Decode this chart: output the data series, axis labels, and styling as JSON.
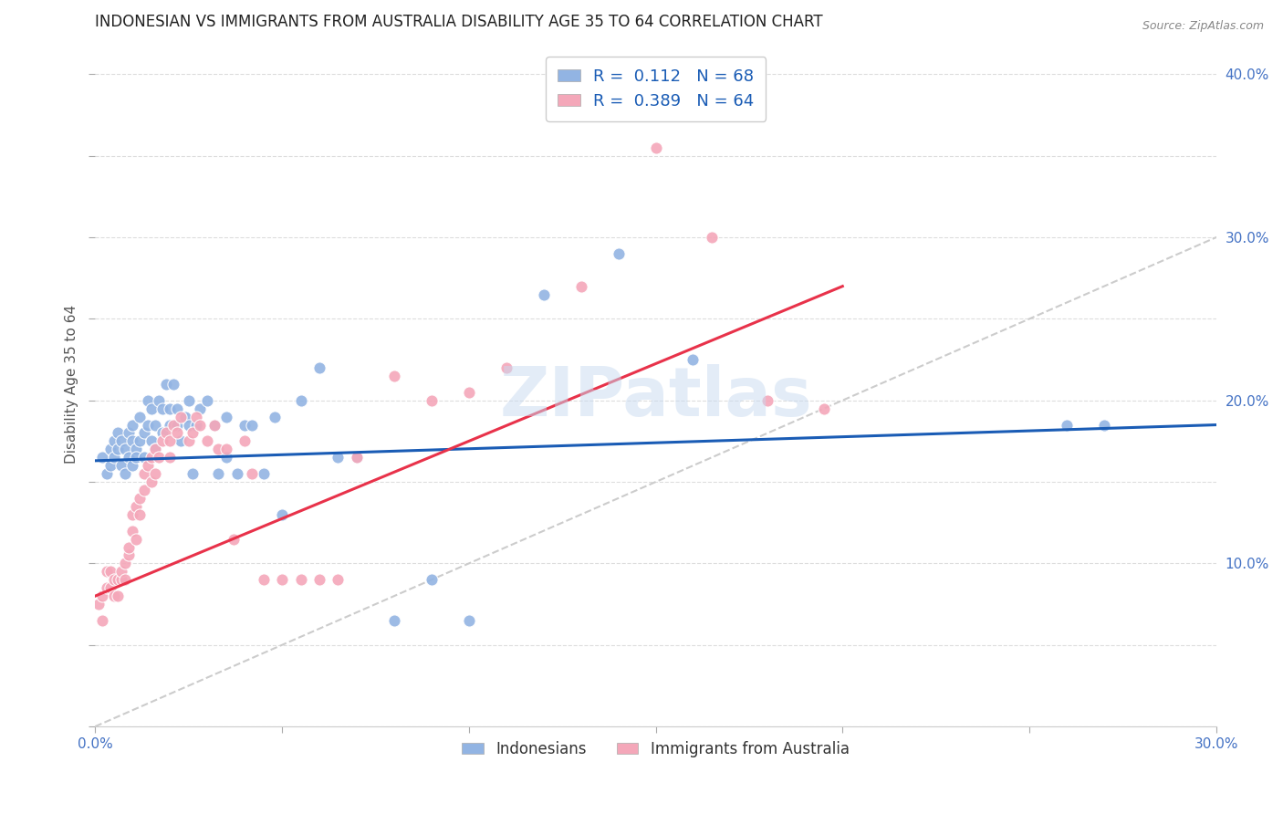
{
  "title": "INDONESIAN VS IMMIGRANTS FROM AUSTRALIA DISABILITY AGE 35 TO 64 CORRELATION CHART",
  "source": "Source: ZipAtlas.com",
  "ylabel": "Disability Age 35 to 64",
  "xlim": [
    0.0,
    0.3
  ],
  "ylim": [
    0.0,
    0.42
  ],
  "x_tick_positions": [
    0.0,
    0.05,
    0.1,
    0.15,
    0.2,
    0.25,
    0.3
  ],
  "x_tick_labels": [
    "0.0%",
    "",
    "",
    "",
    "",
    "",
    "30.0%"
  ],
  "y_ticks_right": [
    0.1,
    0.2,
    0.3,
    0.4
  ],
  "y_tick_labels_right": [
    "10.0%",
    "20.0%",
    "30.0%",
    "40.0%"
  ],
  "legend_R1": "0.112",
  "legend_N1": "68",
  "legend_R2": "0.389",
  "legend_N2": "64",
  "indonesian_color": "#92b4e3",
  "australia_color": "#f4a7b9",
  "trendline1_color": "#1a5cb5",
  "trendline2_color": "#e8324a",
  "diagonal_color": "#cccccc",
  "watermark": "ZIPatlas",
  "indonesians_scatter_x": [
    0.002,
    0.003,
    0.004,
    0.004,
    0.005,
    0.005,
    0.006,
    0.006,
    0.007,
    0.007,
    0.008,
    0.008,
    0.009,
    0.009,
    0.01,
    0.01,
    0.01,
    0.011,
    0.011,
    0.012,
    0.012,
    0.013,
    0.013,
    0.014,
    0.014,
    0.015,
    0.015,
    0.016,
    0.016,
    0.017,
    0.018,
    0.018,
    0.019,
    0.02,
    0.02,
    0.021,
    0.022,
    0.022,
    0.023,
    0.024,
    0.025,
    0.025,
    0.026,
    0.027,
    0.028,
    0.03,
    0.032,
    0.033,
    0.035,
    0.035,
    0.038,
    0.04,
    0.042,
    0.045,
    0.048,
    0.05,
    0.055,
    0.06,
    0.065,
    0.07,
    0.08,
    0.09,
    0.1,
    0.12,
    0.14,
    0.16,
    0.26,
    0.27
  ],
  "indonesians_scatter_y": [
    0.165,
    0.155,
    0.17,
    0.16,
    0.175,
    0.165,
    0.17,
    0.18,
    0.16,
    0.175,
    0.155,
    0.17,
    0.165,
    0.18,
    0.175,
    0.16,
    0.185,
    0.17,
    0.165,
    0.175,
    0.19,
    0.18,
    0.165,
    0.2,
    0.185,
    0.175,
    0.195,
    0.185,
    0.17,
    0.2,
    0.195,
    0.18,
    0.21,
    0.195,
    0.185,
    0.21,
    0.185,
    0.195,
    0.175,
    0.19,
    0.2,
    0.185,
    0.155,
    0.185,
    0.195,
    0.2,
    0.185,
    0.155,
    0.165,
    0.19,
    0.155,
    0.185,
    0.185,
    0.155,
    0.19,
    0.13,
    0.2,
    0.22,
    0.165,
    0.165,
    0.065,
    0.09,
    0.065,
    0.265,
    0.29,
    0.225,
    0.185,
    0.185
  ],
  "australia_scatter_x": [
    0.001,
    0.002,
    0.002,
    0.003,
    0.003,
    0.004,
    0.004,
    0.005,
    0.005,
    0.006,
    0.006,
    0.007,
    0.007,
    0.008,
    0.008,
    0.009,
    0.009,
    0.01,
    0.01,
    0.011,
    0.011,
    0.012,
    0.012,
    0.013,
    0.013,
    0.014,
    0.015,
    0.015,
    0.016,
    0.016,
    0.017,
    0.018,
    0.019,
    0.02,
    0.02,
    0.021,
    0.022,
    0.023,
    0.025,
    0.026,
    0.027,
    0.028,
    0.03,
    0.032,
    0.033,
    0.035,
    0.037,
    0.04,
    0.042,
    0.045,
    0.05,
    0.055,
    0.06,
    0.065,
    0.07,
    0.08,
    0.09,
    0.1,
    0.11,
    0.13,
    0.15,
    0.165,
    0.18,
    0.195
  ],
  "australia_scatter_y": [
    0.075,
    0.065,
    0.08,
    0.085,
    0.095,
    0.085,
    0.095,
    0.08,
    0.09,
    0.08,
    0.09,
    0.09,
    0.095,
    0.09,
    0.1,
    0.105,
    0.11,
    0.12,
    0.13,
    0.115,
    0.135,
    0.13,
    0.14,
    0.145,
    0.155,
    0.16,
    0.15,
    0.165,
    0.155,
    0.17,
    0.165,
    0.175,
    0.18,
    0.175,
    0.165,
    0.185,
    0.18,
    0.19,
    0.175,
    0.18,
    0.19,
    0.185,
    0.175,
    0.185,
    0.17,
    0.17,
    0.115,
    0.175,
    0.155,
    0.09,
    0.09,
    0.09,
    0.09,
    0.09,
    0.165,
    0.215,
    0.2,
    0.205,
    0.22,
    0.27,
    0.355,
    0.3,
    0.2,
    0.195
  ],
  "trendline1_x": [
    0.0,
    0.3
  ],
  "trendline1_y": [
    0.163,
    0.185
  ],
  "trendline2_x": [
    0.0,
    0.2
  ],
  "trendline2_y": [
    0.08,
    0.27
  ]
}
